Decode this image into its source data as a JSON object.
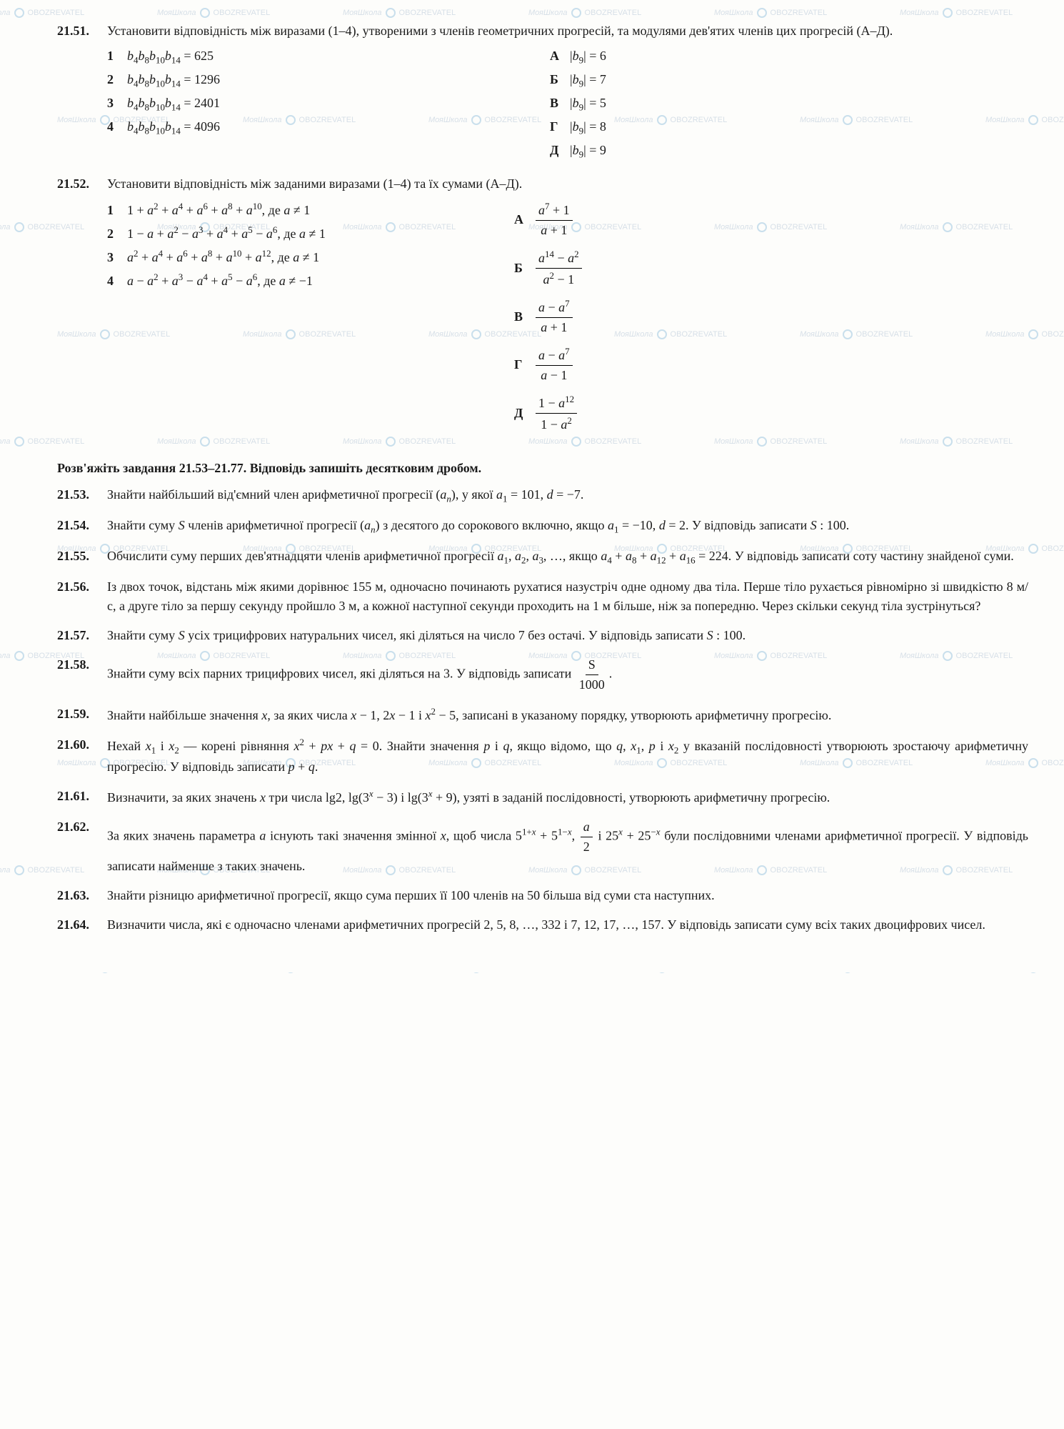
{
  "watermark_text_1": "МояШкола",
  "watermark_text_2": "OBOZREVATEL",
  "p2151": {
    "num": "21.51.",
    "prompt": "Установити відповідність між виразами (1–4), утвореними з членів геометричних прогресій, та модулями дев'ятих членів цих прогресій (А–Д).",
    "left": [
      {
        "n": "1",
        "t": "b₄b₈b₁₀b₁₄ = 625"
      },
      {
        "n": "2",
        "t": "b₄b₈b₁₀b₁₄ = 1296"
      },
      {
        "n": "3",
        "t": "b₄b₈b₁₀b₁₄ = 2401"
      },
      {
        "n": "4",
        "t": "b₄b₈b₁₀b₁₄ = 4096"
      }
    ],
    "right": [
      {
        "n": "А",
        "t": "|b₉| = 6"
      },
      {
        "n": "Б",
        "t": "|b₉| = 7"
      },
      {
        "n": "В",
        "t": "|b₉| = 5"
      },
      {
        "n": "Г",
        "t": "|b₉| = 8"
      },
      {
        "n": "Д",
        "t": "|b₉| = 9"
      }
    ]
  },
  "p2152": {
    "num": "21.52.",
    "prompt": "Установити відповідність між заданими виразами (1–4) та їх сумами (А–Д).",
    "left_html": [
      {
        "n": "1",
        "t": "1 + a² + a⁴ + a⁶ + a⁸ + a¹⁰, де a ≠ 1"
      },
      {
        "n": "2",
        "t": "1 − a + a² − a³ + a⁴ + a⁵ − a⁶, де a ≠ 1"
      },
      {
        "n": "3",
        "t": "a² + a⁴ + a⁶ + a⁸ + a¹⁰ + a¹², де a ≠ 1"
      },
      {
        "n": "4",
        "t": "a − a² + a³ − a⁴ + a⁵ − a⁶, де a ≠ −1"
      }
    ],
    "right_frac": [
      {
        "n": "А",
        "num": "a⁷ + 1",
        "den": "a + 1"
      },
      {
        "n": "Б",
        "num": "a¹⁴ − a²",
        "den": "a² − 1"
      },
      {
        "n": "В",
        "num": "a − a⁷",
        "den": "a + 1"
      },
      {
        "n": "Г",
        "num": "a − a⁷",
        "den": "a − 1"
      },
      {
        "n": "Д",
        "num": "1 − a¹²",
        "den": "1 − a²"
      }
    ]
  },
  "section_head": "Розв'яжіть завдання 21.53–21.77. Відповідь запишіть десятковим дробом.",
  "p2153": {
    "num": "21.53.",
    "t": "Знайти найбільший від'ємний член арифметичної прогресії (aₙ), у якої a₁ = 101, d = −7."
  },
  "p2154": {
    "num": "21.54.",
    "t": "Знайти суму S членів арифметичної прогресії (aₙ) з десятого до сорокового включно, якщо a₁ = −10, d = 2. У відповідь записати S : 100."
  },
  "p2155": {
    "num": "21.55.",
    "t": "Обчислити суму перших дев'ятнадцяти членів арифметичної прогресії a₁, a₂, a₃, …, якщо a₄ + a₈ + a₁₂ + a₁₆ = 224. У відповідь записати соту частину знайденої суми."
  },
  "p2156": {
    "num": "21.56.",
    "t": "Із двох точок, відстань між якими дорівнює 155 м, одночасно починають рухатися назустріч одне одному два тіла. Перше тіло рухається рівномірно зі швидкістю 8 м/с, а друге тіло за першу секунду пройшло 3 м, а кожної наступної секунди проходить на 1 м більше, ніж за попередню. Через скільки секунд тіла зустрінуться?"
  },
  "p2157": {
    "num": "21.57.",
    "t": "Знайти суму S усіх трицифрових натуральних чисел, які діляться на число 7 без остачі. У відповідь записати S : 100."
  },
  "p2158": {
    "num": "21.58.",
    "t_pre": "Знайти суму всіх парних трицифрових чисел, які діляться на 3. У відповідь записати ",
    "frac_num": "S",
    "frac_den": "1000",
    "t_post": "."
  },
  "p2159": {
    "num": "21.59.",
    "t": "Знайти найбільше значення x, за яких числа x − 1, 2x − 1 і x² − 5, записані в указаному порядку, утворюють арифметичну прогресію."
  },
  "p2160": {
    "num": "21.60.",
    "t": "Нехай x₁ і x₂ — корені рівняння x² + px + q = 0. Знайти значення p і q, якщо відомо, що q, x₁, p і x₂ у вказаній послідовності утворюють зростаючу арифметичну прогресію. У відповідь записати p + q."
  },
  "p2161": {
    "num": "21.61.",
    "t": "Визначити, за яких значень x три числа lg2, lg(3ˣ − 3) і lg(3ˣ + 9), узяті в заданій послідовності, утворюють арифметичну прогресію."
  },
  "p2162": {
    "num": "21.62.",
    "t_pre": "За яких значень параметра a існують такі значення змінної x, щоб числа 5¹⁺ˣ + 5¹⁻ˣ, ",
    "frac_num": "a",
    "frac_den": "2",
    "t_mid": " і 25ˣ + 25⁻ˣ були послідовними членами арифметичної прогресії. У відповідь записати найменше з таких значень."
  },
  "p2163": {
    "num": "21.63.",
    "t": "Знайти різницю арифметичної прогресії, якщо сума перших її 100 членів на 50 більша від суми ста наступних."
  },
  "p2164": {
    "num": "21.64.",
    "t": "Визначити числа, які є одночасно членами арифметичних прогресій 2, 5, 8, …, 332 і 7, 12, 17, …, 157. У відповідь записати суму всіх таких двоцифрових чисел."
  }
}
